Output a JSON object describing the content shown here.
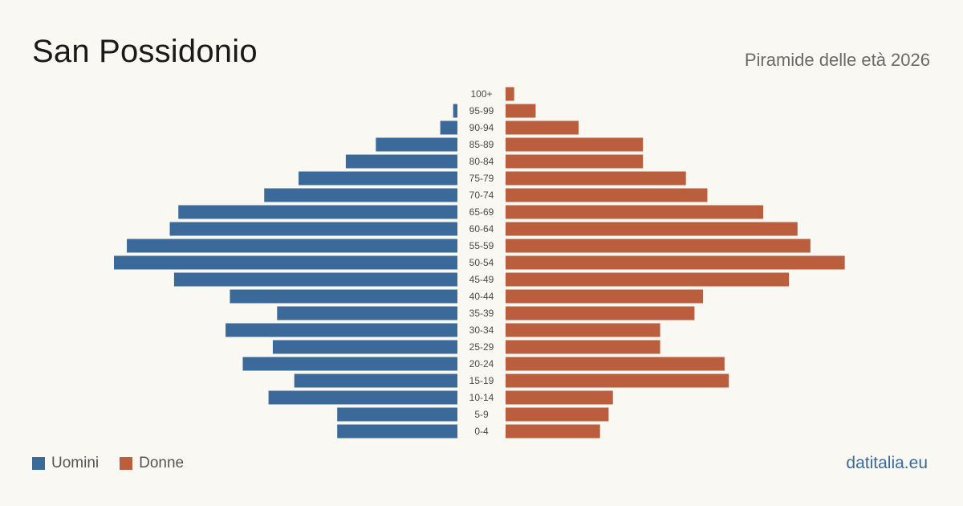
{
  "header": {
    "title": "San Possidonio",
    "subtitle": "Piramide delle età 2026"
  },
  "legend": {
    "male_label": "Uomini",
    "female_label": "Donne"
  },
  "brand": {
    "text": "datitalia.eu"
  },
  "colors": {
    "male": "#3b6a9a",
    "female": "#bb5e3e",
    "background": "#faf8f3"
  },
  "chart_data": {
    "type": "bar",
    "orientation": "horizontal-pyramid",
    "title": "San Possidonio",
    "subtitle": "Piramide delle età 2026",
    "categories": [
      "100+",
      "95-99",
      "90-94",
      "85-89",
      "80-84",
      "75-79",
      "70-74",
      "65-69",
      "60-64",
      "55-59",
      "50-54",
      "45-49",
      "40-44",
      "35-39",
      "30-34",
      "25-29",
      "20-24",
      "15-19",
      "10-14",
      "5-9",
      "0-4"
    ],
    "series": [
      {
        "name": "Uomini",
        "color": "#3b6a9a",
        "values": [
          0,
          1,
          4,
          19,
          26,
          37,
          45,
          65,
          67,
          77,
          80,
          66,
          53,
          42,
          54,
          43,
          50,
          38,
          44,
          28,
          28
        ]
      },
      {
        "name": "Donne",
        "color": "#bb5e3e",
        "values": [
          2,
          7,
          17,
          32,
          32,
          42,
          47,
          60,
          68,
          71,
          79,
          66,
          46,
          44,
          36,
          36,
          51,
          52,
          25,
          24,
          22
        ]
      }
    ],
    "grid": false,
    "legend_position": "bottom-left"
  }
}
